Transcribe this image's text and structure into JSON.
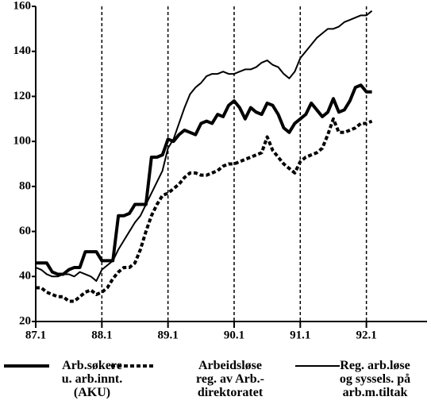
{
  "chart_data": {
    "type": "line",
    "xlim": [
      0,
      71
    ],
    "ylim": [
      20,
      160
    ],
    "xticks": [
      {
        "value": 0,
        "label": "87.1"
      },
      {
        "value": 12,
        "label": "88.1"
      },
      {
        "value": 24,
        "label": "89.1"
      },
      {
        "value": 36,
        "label": "90.1"
      },
      {
        "value": 48,
        "label": "91.1"
      },
      {
        "value": 60,
        "label": "92.1"
      }
    ],
    "yticks": [
      20,
      40,
      60,
      80,
      100,
      120,
      140,
      160
    ],
    "grid": "x",
    "x": [
      0,
      1,
      2,
      3,
      4,
      5,
      6,
      7,
      8,
      9,
      10,
      11,
      12,
      13,
      14,
      15,
      16,
      17,
      18,
      19,
      20,
      21,
      22,
      23,
      24,
      25,
      26,
      27,
      28,
      29,
      30,
      31,
      32,
      33,
      34,
      35,
      36,
      37,
      38,
      39,
      40,
      41,
      42,
      43,
      44,
      45,
      46,
      47,
      48,
      49,
      50,
      51,
      52,
      53,
      54,
      55,
      56,
      57,
      58,
      59,
      60,
      61
    ],
    "series": [
      {
        "name": "Arb.søkere\nu. arb.innt.\n(AKU)",
        "color": "#000000",
        "line_width": 4,
        "dash": "solid",
        "values": [
          46,
          46,
          46,
          42,
          41,
          41,
          43,
          44,
          44,
          51,
          51,
          51,
          47,
          47,
          47,
          67,
          67,
          68,
          72,
          72,
          72,
          93,
          93,
          94,
          101,
          100,
          103,
          105,
          104,
          103,
          108,
          109,
          108,
          112,
          111,
          116,
          118,
          115,
          110,
          115,
          113,
          112,
          117,
          116,
          112,
          106,
          104,
          108,
          110,
          112,
          117,
          114,
          111,
          113,
          119,
          113,
          114,
          118,
          124,
          125,
          122,
          122
        ]
      },
      {
        "name": "Arbeidsløse\nreg. av Arb.-\ndirektoratet",
        "color": "#000000",
        "line_width": 4,
        "dash": "dotted",
        "values": [
          35,
          35,
          33,
          32,
          31,
          31,
          29,
          29,
          31,
          33,
          34,
          32,
          33,
          35,
          39,
          42,
          44,
          44,
          46,
          52,
          60,
          67,
          72,
          76,
          77,
          79,
          81,
          84,
          86,
          86,
          85,
          85,
          86,
          87,
          89,
          90,
          90,
          91,
          92,
          93,
          94,
          95,
          102,
          96,
          93,
          90,
          88,
          86,
          91,
          93,
          94,
          95,
          97,
          103,
          110,
          104,
          104,
          105,
          106,
          108,
          108,
          109
        ]
      },
      {
        "name": "Reg. arb.løse\nog syssels. på\narb.m.tiltak",
        "color": "#000000",
        "line_width": 2,
        "dash": "solid",
        "values": [
          44,
          43,
          41,
          40,
          40,
          41,
          41,
          40,
          42,
          41,
          40,
          38,
          43,
          45,
          47,
          52,
          56,
          60,
          64,
          67,
          72,
          77,
          82,
          87,
          97,
          101,
          108,
          115,
          121,
          124,
          126,
          129,
          130,
          130,
          131,
          130,
          130,
          131,
          132,
          132,
          133,
          135,
          136,
          134,
          133,
          130,
          128,
          131,
          137,
          140,
          143,
          146,
          148,
          150,
          150,
          151,
          153,
          154,
          155,
          156,
          156,
          158
        ]
      }
    ]
  }
}
